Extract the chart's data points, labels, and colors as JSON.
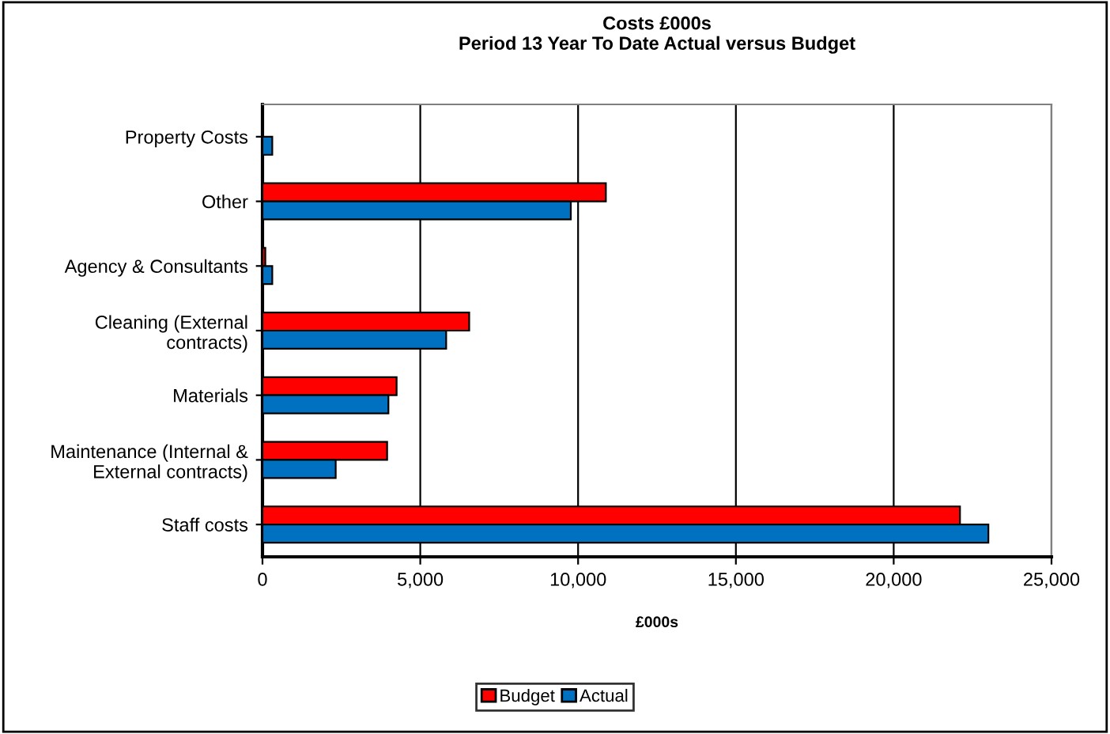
{
  "chart_data": {
    "type": "bar",
    "orientation": "horizontal",
    "title": "Costs £000s\nPeriod 13 Year To Date Actual versus Budget",
    "xlabel": "£000s",
    "categories": [
      "Property Costs",
      "Other",
      "Agency & Consultants",
      "Cleaning (External\ncontracts)",
      "Materials",
      "Maintenance (Internal &\nExternal contracts)",
      "Staff costs"
    ],
    "series": [
      {
        "name": "Budget",
        "color": "#ff0000",
        "values": [
          null,
          10880,
          90,
          6550,
          4250,
          3950,
          22100
        ]
      },
      {
        "name": "Actual",
        "color": "#0070c0",
        "values": [
          310,
          9770,
          310,
          5820,
          3990,
          2320,
          23000
        ]
      }
    ],
    "xlim": [
      0,
      25000
    ],
    "xticks": [
      {
        "value": 0,
        "label": "0"
      },
      {
        "value": 5000,
        "label": "5,000"
      },
      {
        "value": 10000,
        "label": "10,000"
      },
      {
        "value": 15000,
        "label": "15,000"
      },
      {
        "value": 20000,
        "label": "20,000"
      },
      {
        "value": 25000,
        "label": "25,000"
      }
    ],
    "grid": "x",
    "legend": "bottom"
  }
}
